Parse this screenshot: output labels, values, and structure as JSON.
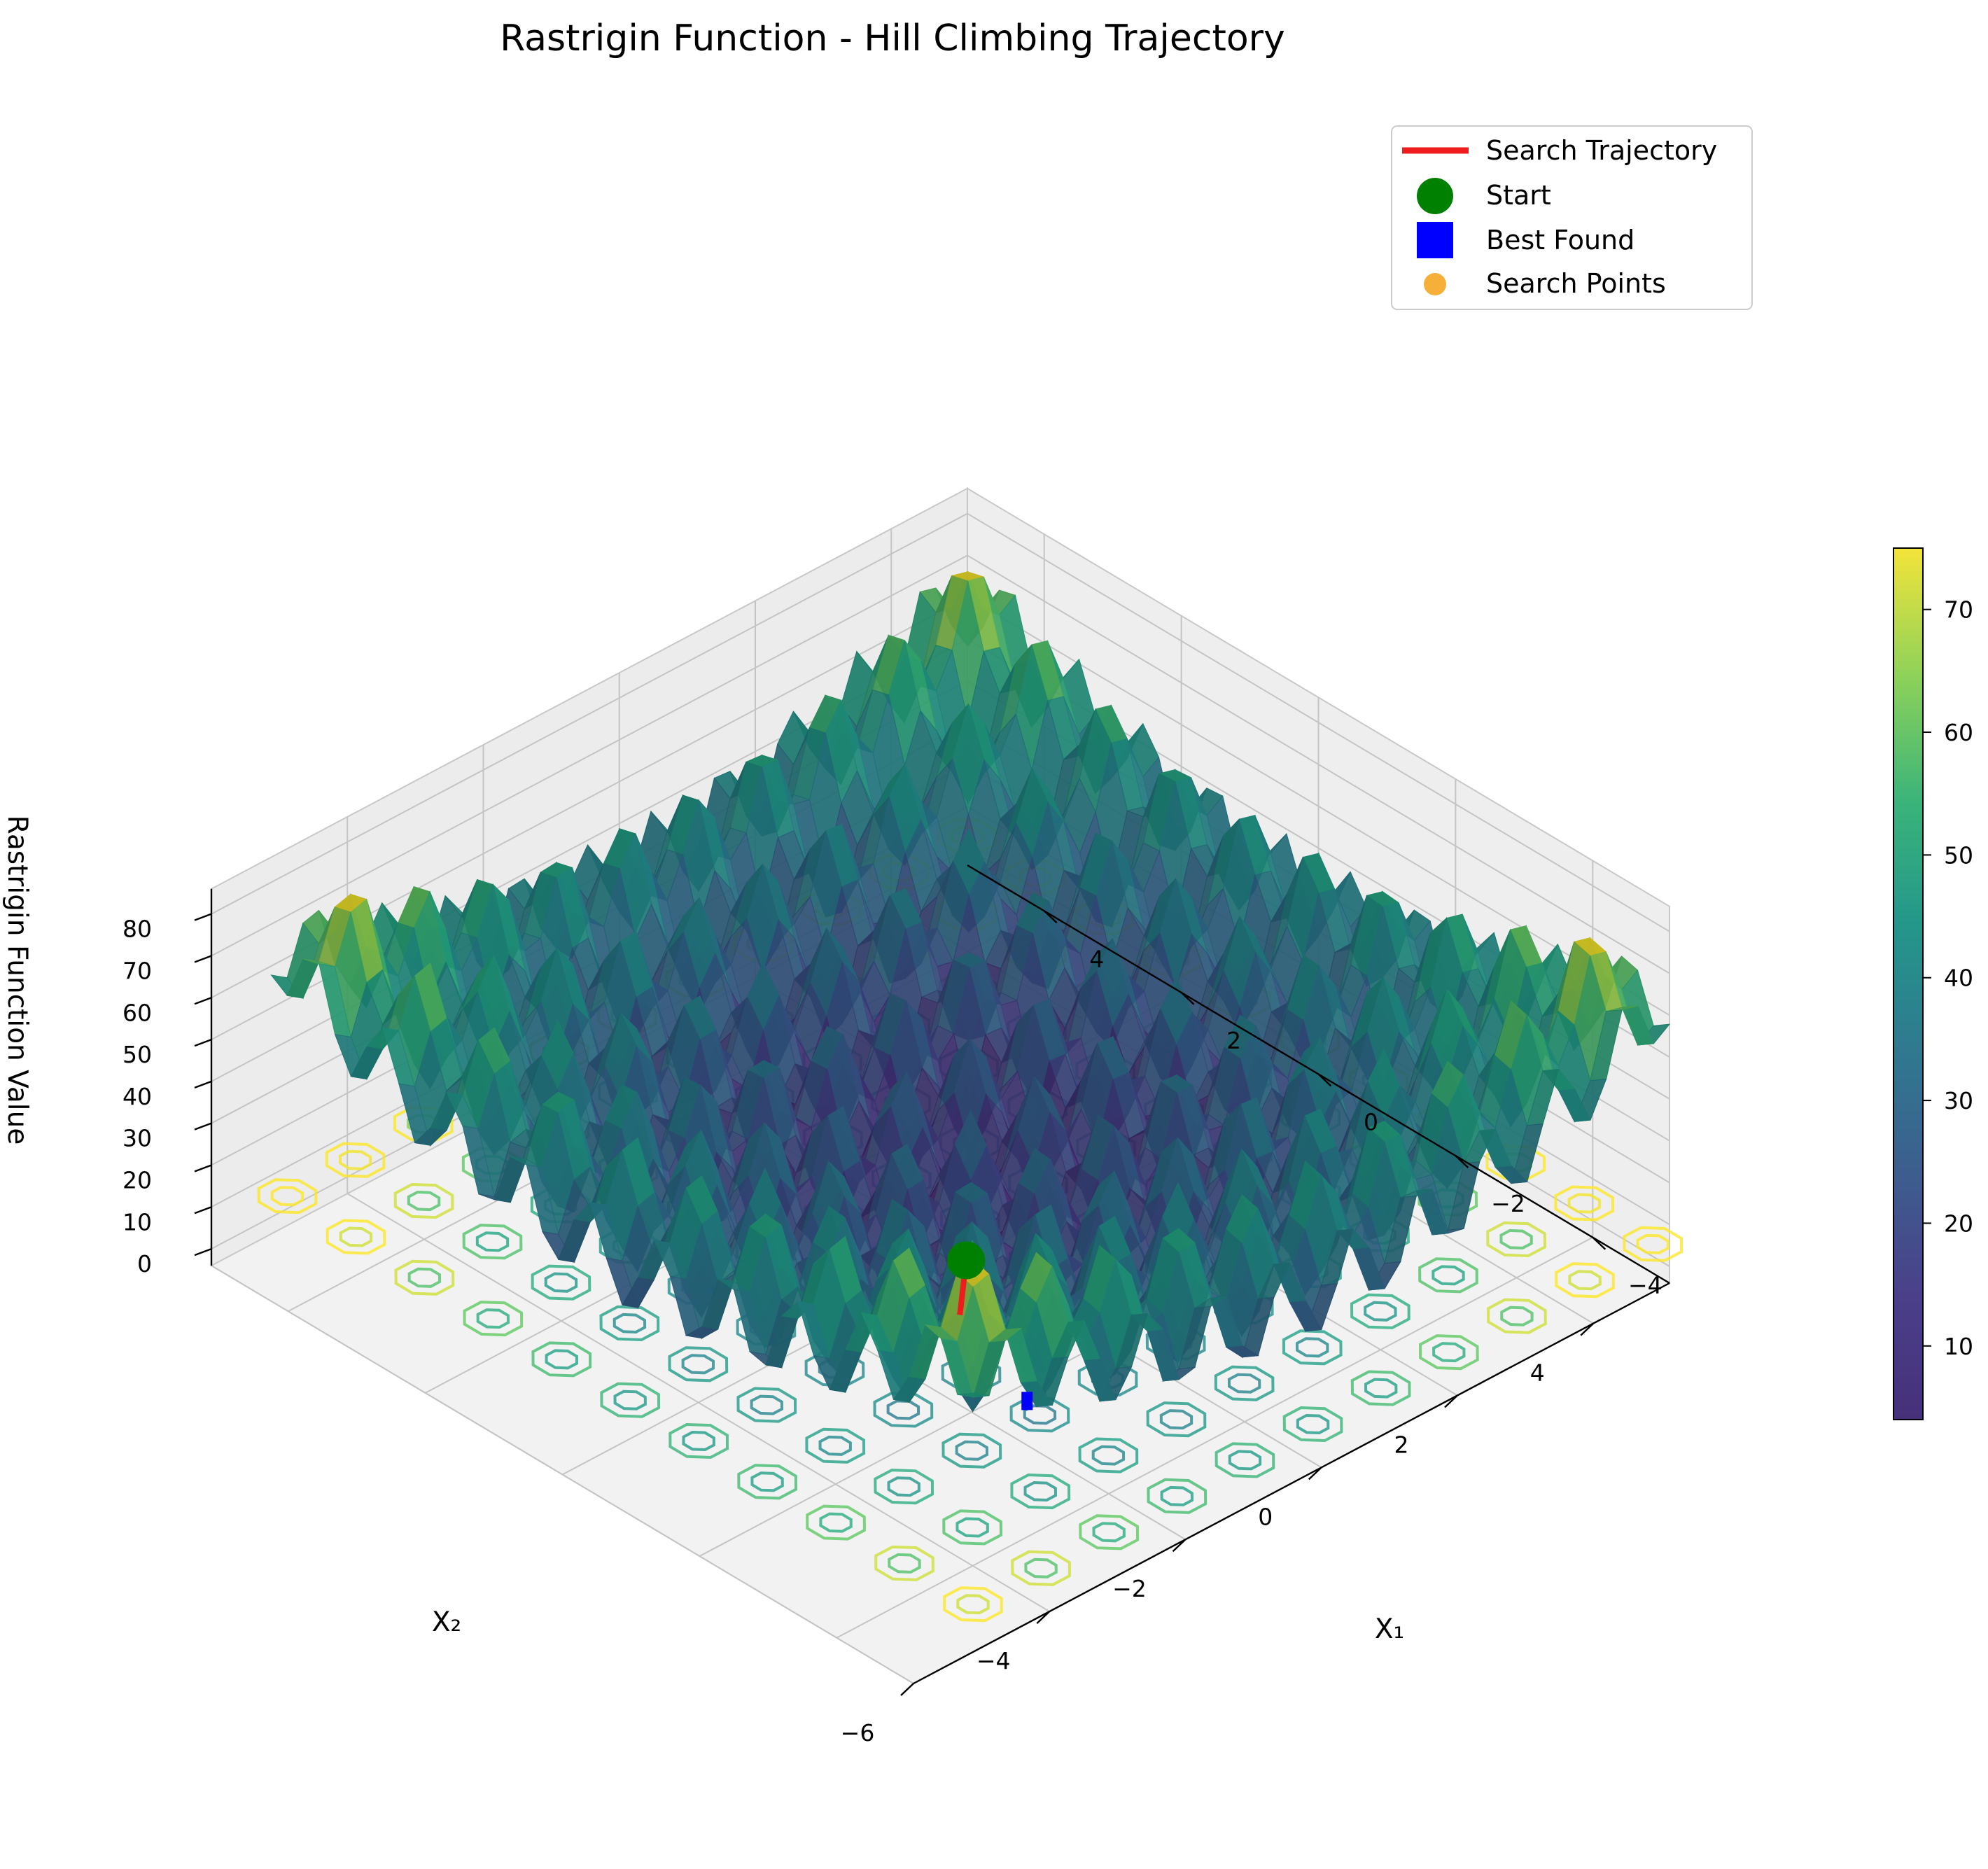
{
  "chart_data": {
    "type": "surface",
    "title": "Rastrigin Function - Hill Climbing Trajectory",
    "function": "Rastrigin",
    "xlabel": "X₁",
    "ylabel": "X₂",
    "zlabel": "Rastrigin Function Value",
    "xlim": [
      -5.12,
      5.12
    ],
    "ylim": [
      -6,
      5.12
    ],
    "zlim": [
      -4,
      86
    ],
    "x1_ticks": [
      "−4",
      "−2",
      "0",
      "2",
      "4"
    ],
    "x1_tick_values": [
      -4,
      -2,
      0,
      2,
      4
    ],
    "x2_ticks": [
      "−6",
      "−4",
      "−2",
      "0",
      "2",
      "4"
    ],
    "x2_tick_values": [
      -6,
      -4,
      -2,
      0,
      2,
      4
    ],
    "z_ticks": [
      "0",
      "10",
      "20",
      "30",
      "40",
      "50",
      "60",
      "70",
      "80"
    ],
    "z_tick_values": [
      0,
      10,
      20,
      30,
      40,
      50,
      60,
      70,
      80
    ],
    "colormap": "viridis",
    "colorbar": {
      "min": 4,
      "max": 75,
      "ticks": [
        "10",
        "20",
        "30",
        "40",
        "50",
        "60",
        "70"
      ],
      "tick_values": [
        10,
        20,
        30,
        40,
        50,
        60,
        70
      ]
    },
    "grid": true,
    "legend_position": "top-right",
    "legend": [
      {
        "label": "Search Trajectory",
        "marker": "line",
        "color": "#ee1c1c"
      },
      {
        "label": "Start",
        "marker": "circle",
        "color": "#008000"
      },
      {
        "label": "Best Found",
        "marker": "square",
        "color": "#0000ff"
      },
      {
        "label": "Search Points",
        "marker": "dot",
        "color": "#f5a623"
      }
    ],
    "trajectory": {
      "start": {
        "x1": -4.5,
        "x2": -4.6,
        "z": 79
      },
      "best_found": {
        "x1": -4.0,
        "x2": -3.2,
        "z": 29
      }
    }
  },
  "colors": {
    "trajectory": "#ee1c1c",
    "start": "#008000",
    "best": "#0000ff",
    "search_points": "#f5a623"
  }
}
